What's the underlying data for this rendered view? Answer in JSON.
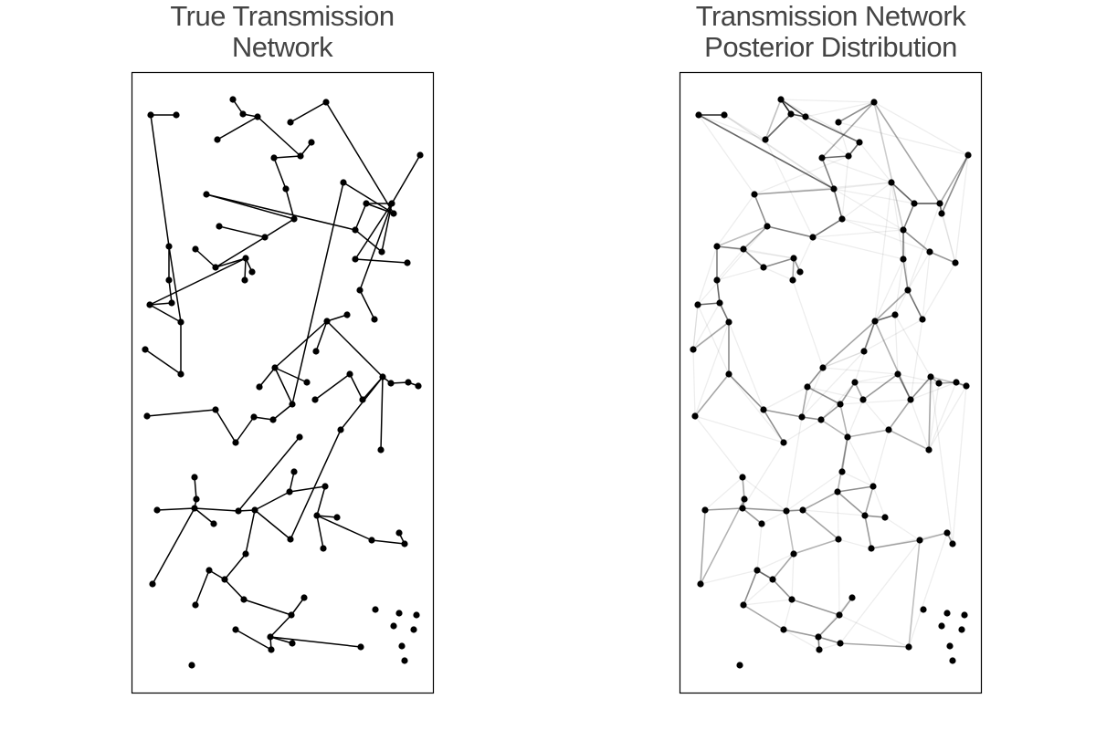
{
  "panels": {
    "left": {
      "title_line1": "True Transmission",
      "title_line2": "Network"
    },
    "right": {
      "title_line1": "Transmission Network",
      "title_line2": "Posterior Distribution"
    }
  },
  "colors": {
    "node": "#000000",
    "edge": "#000000",
    "frame": "#000000",
    "title": "#444444"
  }
}
